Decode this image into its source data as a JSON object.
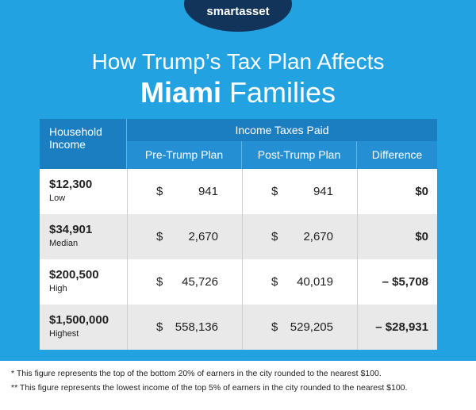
{
  "logo": "smartasset",
  "title": {
    "line1": "How Trump’s Tax Plan Affects",
    "city": "Miami",
    "rest": "Families"
  },
  "table": {
    "header": {
      "income": "Household Income",
      "group": "Income Taxes Paid",
      "pre": "Pre-Trump Plan",
      "post": "Post-Trump Plan",
      "diff": "Difference"
    },
    "rows": [
      {
        "income": "$12,300",
        "level": "Low",
        "pre": {
          "symbol": "$",
          "amount": "941"
        },
        "post": {
          "symbol": "$",
          "amount": "941"
        },
        "diff": "$0"
      },
      {
        "income": "$34,901",
        "level": "Median",
        "pre": {
          "symbol": "$",
          "amount": "2,670"
        },
        "post": {
          "symbol": "$",
          "amount": "2,670"
        },
        "diff": "$0"
      },
      {
        "income": "$200,500",
        "level": "High",
        "pre": {
          "symbol": "$",
          "amount": "45,726"
        },
        "post": {
          "symbol": "$",
          "amount": "40,019"
        },
        "diff": "– $5,708"
      },
      {
        "income": "$1,500,000",
        "level": "Highest",
        "pre": {
          "symbol": "$",
          "amount": "558,136"
        },
        "post": {
          "symbol": "$",
          "amount": "529,205"
        },
        "diff": "– $28,931"
      }
    ]
  },
  "footnotes": [
    "* This figure represents the top of the bottom 20% of earners in the city rounded to the nearest $100.",
    "** This figure represents the lowest income of the top 5% of earners in the city rounded to the nearest $100."
  ]
}
